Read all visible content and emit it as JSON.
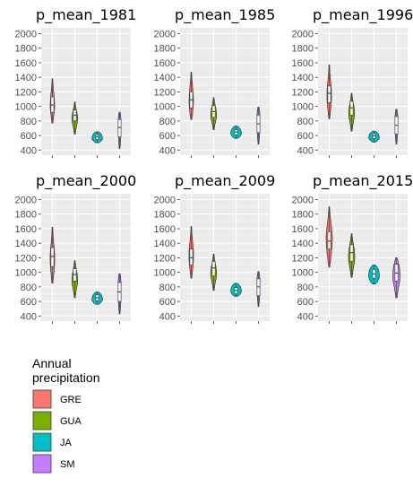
{
  "chart_data": {
    "type": "violin",
    "y_ticks": [
      400,
      600,
      800,
      1000,
      1200,
      1400,
      1600,
      1800,
      2000
    ],
    "ylim": [
      330,
      2080
    ],
    "grid": true,
    "legend_placement": "bottom-left",
    "legend": {
      "title_lines": [
        "Annual",
        "precipitation"
      ],
      "entries": [
        {
          "name": "GRE",
          "color": "#F8766D"
        },
        {
          "name": "GUA",
          "color": "#7CAE00"
        },
        {
          "name": "JA",
          "color": "#00BFC4"
        },
        {
          "name": "SM",
          "color": "#C77CFF"
        }
      ]
    },
    "panels": [
      {
        "title": "p_mean_1981",
        "violins": [
          {
            "group": "GRE",
            "min": 770,
            "max": 1380,
            "q1": 920,
            "median": 1020,
            "q3": 1130,
            "widths": [
              0.04,
              0.1,
              0.16,
              0.2,
              0.18,
              0.15,
              0.09,
              0.05,
              0.03
            ]
          },
          {
            "group": "GUA",
            "min": 620,
            "max": 1060,
            "q1": 800,
            "median": 880,
            "q3": 950,
            "widths": [
              0.04,
              0.09,
              0.16,
              0.23,
              0.26,
              0.22,
              0.14,
              0.07,
              0.03
            ]
          },
          {
            "group": "JA",
            "min": 500,
            "max": 650,
            "q1": 545,
            "median": 580,
            "q3": 610,
            "widths": [
              0.14,
              0.3,
              0.44,
              0.48,
              0.44,
              0.4,
              0.3,
              0.14
            ]
          },
          {
            "group": "SM",
            "min": 420,
            "max": 920,
            "q1": 580,
            "median": 710,
            "q3": 820,
            "widths": [
              0.03,
              0.06,
              0.08,
              0.1,
              0.11,
              0.11,
              0.12,
              0.12,
              0.1,
              0.05
            ]
          }
        ]
      },
      {
        "title": "p_mean_1985",
        "violins": [
          {
            "group": "GRE",
            "min": 820,
            "max": 1470,
            "q1": 980,
            "median": 1090,
            "q3": 1200,
            "widths": [
              0.04,
              0.12,
              0.17,
              0.2,
              0.18,
              0.14,
              0.1,
              0.05,
              0.03
            ]
          },
          {
            "group": "GUA",
            "min": 680,
            "max": 1120,
            "q1": 850,
            "median": 930,
            "q3": 1010,
            "widths": [
              0.04,
              0.09,
              0.17,
              0.24,
              0.26,
              0.22,
              0.14,
              0.07,
              0.03
            ]
          },
          {
            "group": "JA",
            "min": 560,
            "max": 730,
            "q1": 610,
            "median": 650,
            "q3": 680,
            "widths": [
              0.14,
              0.32,
              0.44,
              0.48,
              0.44,
              0.4,
              0.28,
              0.12
            ]
          },
          {
            "group": "SM",
            "min": 480,
            "max": 990,
            "q1": 640,
            "median": 760,
            "q3": 880,
            "widths": [
              0.03,
              0.06,
              0.09,
              0.11,
              0.12,
              0.12,
              0.13,
              0.13,
              0.1,
              0.05
            ]
          }
        ]
      },
      {
        "title": "p_mean_1996",
        "violins": [
          {
            "group": "GRE",
            "min": 830,
            "max": 1570,
            "q1": 1050,
            "median": 1180,
            "q3": 1280,
            "widths": [
              0.04,
              0.1,
              0.16,
              0.2,
              0.2,
              0.16,
              0.1,
              0.05,
              0.03
            ]
          },
          {
            "group": "GUA",
            "min": 660,
            "max": 1180,
            "q1": 880,
            "median": 980,
            "q3": 1070,
            "widths": [
              0.04,
              0.09,
              0.16,
              0.24,
              0.26,
              0.22,
              0.14,
              0.07,
              0.03
            ]
          },
          {
            "group": "JA",
            "min": 510,
            "max": 660,
            "q1": 560,
            "median": 595,
            "q3": 625,
            "widths": [
              0.14,
              0.3,
              0.44,
              0.48,
              0.44,
              0.4,
              0.28,
              0.12
            ]
          },
          {
            "group": "SM",
            "min": 480,
            "max": 960,
            "q1": 620,
            "median": 740,
            "q3": 860,
            "widths": [
              0.03,
              0.06,
              0.09,
              0.11,
              0.12,
              0.12,
              0.13,
              0.13,
              0.1,
              0.05
            ]
          }
        ]
      },
      {
        "title": "p_mean_2000",
        "violins": [
          {
            "group": "GRE",
            "min": 850,
            "max": 1620,
            "q1": 1080,
            "median": 1220,
            "q3": 1340,
            "widths": [
              0.04,
              0.1,
              0.16,
              0.2,
              0.2,
              0.16,
              0.1,
              0.05,
              0.03
            ]
          },
          {
            "group": "GUA",
            "min": 650,
            "max": 1160,
            "q1": 880,
            "median": 970,
            "q3": 1050,
            "widths": [
              0.04,
              0.09,
              0.16,
              0.24,
              0.26,
              0.22,
              0.14,
              0.07,
              0.03
            ]
          },
          {
            "group": "JA",
            "min": 560,
            "max": 730,
            "q1": 610,
            "median": 650,
            "q3": 690,
            "widths": [
              0.14,
              0.32,
              0.44,
              0.48,
              0.44,
              0.4,
              0.28,
              0.12
            ]
          },
          {
            "group": "SM",
            "min": 430,
            "max": 980,
            "q1": 600,
            "median": 730,
            "q3": 860,
            "widths": [
              0.03,
              0.06,
              0.09,
              0.11,
              0.12,
              0.12,
              0.13,
              0.13,
              0.1,
              0.05
            ]
          }
        ]
      },
      {
        "title": "p_mean_2009",
        "violins": [
          {
            "group": "GRE",
            "min": 920,
            "max": 1630,
            "q1": 1100,
            "median": 1200,
            "q3": 1320,
            "widths": [
              0.04,
              0.1,
              0.16,
              0.2,
              0.2,
              0.16,
              0.1,
              0.05,
              0.03
            ]
          },
          {
            "group": "GUA",
            "min": 750,
            "max": 1250,
            "q1": 950,
            "median": 1060,
            "q3": 1150,
            "widths": [
              0.04,
              0.09,
              0.16,
              0.24,
              0.26,
              0.22,
              0.14,
              0.07,
              0.03
            ]
          },
          {
            "group": "JA",
            "min": 670,
            "max": 850,
            "q1": 710,
            "median": 750,
            "q3": 790,
            "widths": [
              0.14,
              0.32,
              0.44,
              0.48,
              0.44,
              0.4,
              0.28,
              0.12
            ]
          },
          {
            "group": "SM",
            "min": 530,
            "max": 1010,
            "q1": 680,
            "median": 800,
            "q3": 910,
            "widths": [
              0.03,
              0.06,
              0.09,
              0.11,
              0.12,
              0.12,
              0.13,
              0.13,
              0.1,
              0.05
            ]
          }
        ]
      },
      {
        "title": "p_mean_2015",
        "violins": [
          {
            "group": "GRE",
            "min": 1070,
            "max": 1900,
            "q1": 1320,
            "median": 1430,
            "q3": 1560,
            "widths": [
              0.04,
              0.12,
              0.2,
              0.26,
              0.28,
              0.22,
              0.14,
              0.07,
              0.03
            ]
          },
          {
            "group": "GUA",
            "min": 930,
            "max": 1530,
            "q1": 1150,
            "median": 1270,
            "q3": 1380,
            "widths": [
              0.04,
              0.1,
              0.18,
              0.26,
              0.28,
              0.24,
              0.16,
              0.08,
              0.03
            ]
          },
          {
            "group": "JA",
            "min": 840,
            "max": 1100,
            "q1": 920,
            "median": 980,
            "q3": 1040,
            "widths": [
              0.14,
              0.32,
              0.44,
              0.48,
              0.46,
              0.42,
              0.3,
              0.12
            ]
          },
          {
            "group": "SM",
            "min": 650,
            "max": 1200,
            "q1": 880,
            "median": 990,
            "q3": 1110,
            "widths": [
              0.05,
              0.1,
              0.16,
              0.24,
              0.3,
              0.32,
              0.3,
              0.26,
              0.16,
              0.06
            ]
          }
        ]
      }
    ]
  }
}
